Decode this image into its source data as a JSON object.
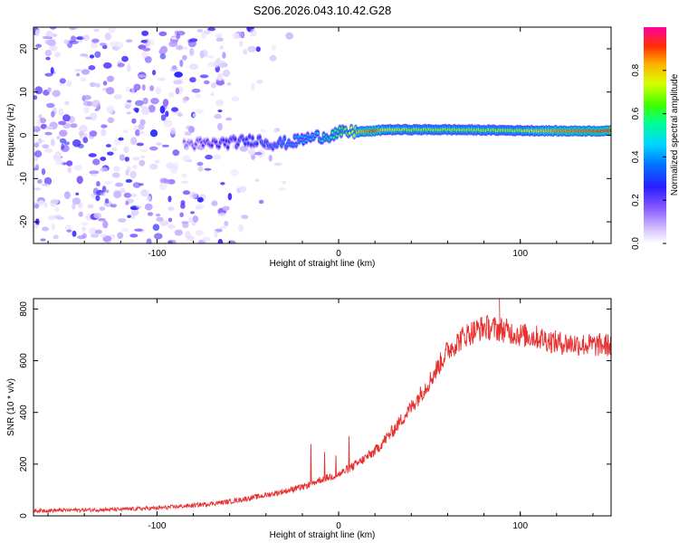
{
  "title": "S206.2026.043.10.42.G28",
  "chart_data": [
    {
      "type": "heatmap",
      "xlabel": "Height of straight line (km)",
      "ylabel": "Frequency (Hz)",
      "xlim": [
        -168,
        150
      ],
      "ylim": [
        -25,
        25
      ],
      "xticks": [
        -100,
        0,
        100
      ],
      "yticks": [
        -20,
        -10,
        0,
        10,
        20
      ],
      "colorbar": {
        "label": "Normalized spectral amplitude",
        "ticks": [
          "0.0",
          "0.2",
          "0.4",
          "0.6",
          "0.8"
        ],
        "tick_values": [
          0.0,
          0.2,
          0.4,
          0.6,
          0.8
        ],
        "range": [
          0,
          1
        ]
      },
      "ridge": {
        "description": "dominant frequency track",
        "x": [
          -85,
          -70,
          -55,
          -45,
          -35,
          -25,
          -15,
          -5,
          0,
          10,
          20,
          25,
          40,
          60,
          80,
          100,
          120,
          150
        ],
        "frequency": [
          -2,
          -2,
          -1.5,
          -1,
          -2,
          -1.5,
          -0.5,
          0,
          0.5,
          0.8,
          1,
          1.3,
          1.3,
          1.3,
          1.2,
          1.1,
          1,
          1
        ],
        "amplitude": [
          0.15,
          0.25,
          0.3,
          0.3,
          0.35,
          0.4,
          0.45,
          0.55,
          0.6,
          0.8,
          0.9,
          0.75,
          0.7,
          0.7,
          0.7,
          0.7,
          0.85,
          0.9
        ]
      }
    },
    {
      "type": "line",
      "xlabel": "Height of straight line (km)",
      "ylabel": "SNR (10 * v/v)",
      "xlim": [
        -168,
        150
      ],
      "ylim": [
        0,
        840
      ],
      "xticks": [
        -100,
        0,
        100
      ],
      "yticks": [
        0,
        200,
        400,
        600,
        800
      ],
      "color": "#e8302f",
      "x": [
        -168,
        -150,
        -120,
        -100,
        -80,
        -60,
        -40,
        -20,
        -10,
        0,
        10,
        20,
        30,
        40,
        50,
        60,
        70,
        80,
        90,
        100,
        110,
        120,
        130,
        140,
        150
      ],
      "y": [
        20,
        22,
        25,
        30,
        40,
        55,
        80,
        110,
        140,
        160,
        200,
        250,
        330,
        420,
        520,
        640,
        700,
        730,
        720,
        700,
        690,
        670,
        665,
        660,
        660
      ]
    }
  ]
}
